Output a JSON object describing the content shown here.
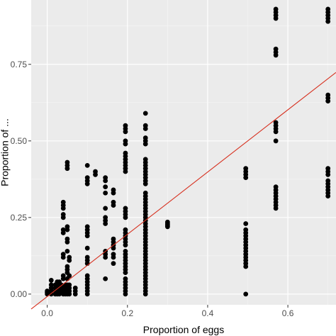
{
  "chart_data": {
    "type": "scatter",
    "title": "",
    "xlabel": "Proportion of eggs",
    "ylabel": "Proportion of ...",
    "xlim": [
      -0.04,
      0.72
    ],
    "ylim": [
      -0.035,
      0.96
    ],
    "x_ticks": [
      0.0,
      0.2,
      0.4,
      0.6
    ],
    "x_tick_labels": [
      "0.0",
      "0.2",
      "0.4",
      "0.6"
    ],
    "y_ticks": [
      0.0,
      0.25,
      0.5,
      0.75
    ],
    "y_tick_labels": [
      "0.00",
      "0.25",
      "0.50",
      "0.75"
    ],
    "grid": true,
    "background": "#ebebeb",
    "point_color": "#000000",
    "fit_line": {
      "intercept": -0.008,
      "slope": 1.016,
      "color": "#d7301f"
    },
    "points": [
      [
        0.0,
        0.005
      ],
      [
        0.0,
        0.01
      ],
      [
        0.0,
        0.0
      ],
      [
        0.01,
        0.0
      ],
      [
        0.01,
        0.01
      ],
      [
        0.01,
        0.02
      ],
      [
        0.01,
        0.03
      ],
      [
        0.01,
        0.045
      ],
      [
        0.02,
        0.0
      ],
      [
        0.02,
        0.01
      ],
      [
        0.02,
        0.02
      ],
      [
        0.02,
        0.03
      ],
      [
        0.025,
        0.0
      ],
      [
        0.025,
        0.02
      ],
      [
        0.025,
        0.04
      ],
      [
        0.03,
        0.0
      ],
      [
        0.03,
        0.01
      ],
      [
        0.03,
        0.02
      ],
      [
        0.03,
        0.03
      ],
      [
        0.03,
        0.04
      ],
      [
        0.035,
        0.01
      ],
      [
        0.035,
        0.03
      ],
      [
        0.04,
        0.0
      ],
      [
        0.04,
        0.01
      ],
      [
        0.04,
        0.02
      ],
      [
        0.04,
        0.05
      ],
      [
        0.04,
        0.06
      ],
      [
        0.04,
        0.12
      ],
      [
        0.04,
        0.13
      ],
      [
        0.04,
        0.2
      ],
      [
        0.04,
        0.21
      ],
      [
        0.04,
        0.25
      ],
      [
        0.04,
        0.26
      ],
      [
        0.04,
        0.28
      ],
      [
        0.04,
        0.29
      ],
      [
        0.04,
        0.3
      ],
      [
        0.045,
        0.0
      ],
      [
        0.045,
        0.01
      ],
      [
        0.045,
        0.02
      ],
      [
        0.045,
        0.03
      ],
      [
        0.05,
        0.0
      ],
      [
        0.05,
        0.01
      ],
      [
        0.05,
        0.02
      ],
      [
        0.05,
        0.03
      ],
      [
        0.05,
        0.05
      ],
      [
        0.05,
        0.07
      ],
      [
        0.05,
        0.08
      ],
      [
        0.05,
        0.09
      ],
      [
        0.05,
        0.14
      ],
      [
        0.05,
        0.17
      ],
      [
        0.05,
        0.18
      ],
      [
        0.05,
        0.21
      ],
      [
        0.05,
        0.22
      ],
      [
        0.05,
        0.41
      ],
      [
        0.05,
        0.42
      ],
      [
        0.05,
        0.43
      ],
      [
        0.055,
        0.0
      ],
      [
        0.055,
        0.01
      ],
      [
        0.055,
        0.02
      ],
      [
        0.055,
        0.03
      ],
      [
        0.055,
        0.06
      ],
      [
        0.055,
        0.11
      ],
      [
        0.055,
        0.12
      ],
      [
        0.07,
        0.0
      ],
      [
        0.07,
        0.01
      ],
      [
        0.07,
        0.02
      ],
      [
        0.1,
        0.0
      ],
      [
        0.1,
        0.01
      ],
      [
        0.1,
        0.02
      ],
      [
        0.1,
        0.03
      ],
      [
        0.1,
        0.04
      ],
      [
        0.1,
        0.05
      ],
      [
        0.1,
        0.06
      ],
      [
        0.1,
        0.1
      ],
      [
        0.1,
        0.11
      ],
      [
        0.1,
        0.12
      ],
      [
        0.1,
        0.15
      ],
      [
        0.1,
        0.19
      ],
      [
        0.1,
        0.2
      ],
      [
        0.1,
        0.21
      ],
      [
        0.1,
        0.22
      ],
      [
        0.1,
        0.36
      ],
      [
        0.1,
        0.37
      ],
      [
        0.1,
        0.38
      ],
      [
        0.1,
        0.42
      ],
      [
        0.12,
        0.39
      ],
      [
        0.12,
        0.4
      ],
      [
        0.145,
        0.05
      ],
      [
        0.145,
        0.12
      ],
      [
        0.145,
        0.13
      ],
      [
        0.145,
        0.14
      ],
      [
        0.145,
        0.23
      ],
      [
        0.145,
        0.24
      ],
      [
        0.145,
        0.25
      ],
      [
        0.145,
        0.28
      ],
      [
        0.145,
        0.33
      ],
      [
        0.145,
        0.35
      ],
      [
        0.145,
        0.37
      ],
      [
        0.145,
        0.38
      ],
      [
        0.165,
        0.1
      ],
      [
        0.165,
        0.12
      ],
      [
        0.165,
        0.13
      ],
      [
        0.165,
        0.15
      ],
      [
        0.165,
        0.16
      ],
      [
        0.165,
        0.17
      ],
      [
        0.165,
        0.18
      ],
      [
        0.165,
        0.29
      ],
      [
        0.165,
        0.3
      ],
      [
        0.165,
        0.33
      ],
      [
        0.165,
        0.34
      ],
      [
        0.195,
        0.0
      ],
      [
        0.195,
        0.01
      ],
      [
        0.195,
        0.02
      ],
      [
        0.195,
        0.03
      ],
      [
        0.195,
        0.04
      ],
      [
        0.195,
        0.05
      ],
      [
        0.195,
        0.07
      ],
      [
        0.195,
        0.08
      ],
      [
        0.195,
        0.09
      ],
      [
        0.195,
        0.1
      ],
      [
        0.195,
        0.11
      ],
      [
        0.195,
        0.12
      ],
      [
        0.195,
        0.13
      ],
      [
        0.195,
        0.14
      ],
      [
        0.195,
        0.16
      ],
      [
        0.195,
        0.17
      ],
      [
        0.195,
        0.18
      ],
      [
        0.195,
        0.19
      ],
      [
        0.195,
        0.2
      ],
      [
        0.195,
        0.21
      ],
      [
        0.195,
        0.25
      ],
      [
        0.195,
        0.26
      ],
      [
        0.195,
        0.27
      ],
      [
        0.195,
        0.28
      ],
      [
        0.195,
        0.4
      ],
      [
        0.195,
        0.41
      ],
      [
        0.195,
        0.42
      ],
      [
        0.195,
        0.43
      ],
      [
        0.195,
        0.44
      ],
      [
        0.195,
        0.45
      ],
      [
        0.195,
        0.46
      ],
      [
        0.195,
        0.49
      ],
      [
        0.195,
        0.5
      ],
      [
        0.195,
        0.53
      ],
      [
        0.195,
        0.54
      ],
      [
        0.195,
        0.55
      ],
      [
        0.245,
        0.0
      ],
      [
        0.245,
        0.01
      ],
      [
        0.245,
        0.02
      ],
      [
        0.245,
        0.03
      ],
      [
        0.245,
        0.04
      ],
      [
        0.245,
        0.05
      ],
      [
        0.245,
        0.06
      ],
      [
        0.245,
        0.07
      ],
      [
        0.245,
        0.08
      ],
      [
        0.245,
        0.09
      ],
      [
        0.245,
        0.1
      ],
      [
        0.245,
        0.11
      ],
      [
        0.245,
        0.12
      ],
      [
        0.245,
        0.13
      ],
      [
        0.245,
        0.14
      ],
      [
        0.245,
        0.15
      ],
      [
        0.245,
        0.16
      ],
      [
        0.245,
        0.17
      ],
      [
        0.245,
        0.18
      ],
      [
        0.245,
        0.19
      ],
      [
        0.245,
        0.2
      ],
      [
        0.245,
        0.21
      ],
      [
        0.245,
        0.22
      ],
      [
        0.245,
        0.23
      ],
      [
        0.245,
        0.24
      ],
      [
        0.245,
        0.25
      ],
      [
        0.245,
        0.26
      ],
      [
        0.245,
        0.27
      ],
      [
        0.245,
        0.28
      ],
      [
        0.245,
        0.29
      ],
      [
        0.245,
        0.3
      ],
      [
        0.245,
        0.31
      ],
      [
        0.245,
        0.32
      ],
      [
        0.245,
        0.33
      ],
      [
        0.245,
        0.36
      ],
      [
        0.245,
        0.37
      ],
      [
        0.245,
        0.38
      ],
      [
        0.245,
        0.39
      ],
      [
        0.245,
        0.4
      ],
      [
        0.245,
        0.41
      ],
      [
        0.245,
        0.42
      ],
      [
        0.245,
        0.43
      ],
      [
        0.245,
        0.44
      ],
      [
        0.245,
        0.49
      ],
      [
        0.245,
        0.5
      ],
      [
        0.245,
        0.51
      ],
      [
        0.245,
        0.54
      ],
      [
        0.245,
        0.55
      ],
      [
        0.245,
        0.59
      ],
      [
        0.3,
        0.22
      ],
      [
        0.3,
        0.225
      ],
      [
        0.3,
        0.23
      ],
      [
        0.3,
        0.235
      ],
      [
        0.495,
        0.0
      ],
      [
        0.495,
        0.09
      ],
      [
        0.495,
        0.1
      ],
      [
        0.495,
        0.11
      ],
      [
        0.495,
        0.12
      ],
      [
        0.495,
        0.13
      ],
      [
        0.495,
        0.14
      ],
      [
        0.495,
        0.15
      ],
      [
        0.495,
        0.16
      ],
      [
        0.495,
        0.17
      ],
      [
        0.495,
        0.18
      ],
      [
        0.495,
        0.19
      ],
      [
        0.495,
        0.2
      ],
      [
        0.495,
        0.21
      ],
      [
        0.495,
        0.23
      ],
      [
        0.495,
        0.38
      ],
      [
        0.495,
        0.39
      ],
      [
        0.495,
        0.4
      ],
      [
        0.495,
        0.41
      ],
      [
        0.57,
        0.28
      ],
      [
        0.57,
        0.29
      ],
      [
        0.57,
        0.3
      ],
      [
        0.57,
        0.31
      ],
      [
        0.57,
        0.32
      ],
      [
        0.57,
        0.33
      ],
      [
        0.57,
        0.34
      ],
      [
        0.57,
        0.35
      ],
      [
        0.57,
        0.5
      ],
      [
        0.57,
        0.53
      ],
      [
        0.57,
        0.54
      ],
      [
        0.57,
        0.55
      ],
      [
        0.57,
        0.56
      ],
      [
        0.57,
        0.78
      ],
      [
        0.57,
        0.79
      ],
      [
        0.57,
        0.8
      ],
      [
        0.57,
        0.9
      ],
      [
        0.57,
        0.91
      ],
      [
        0.57,
        0.92
      ],
      [
        0.57,
        0.93
      ],
      [
        0.7,
        0.32
      ],
      [
        0.7,
        0.33
      ],
      [
        0.7,
        0.34
      ],
      [
        0.7,
        0.35
      ],
      [
        0.7,
        0.36
      ],
      [
        0.7,
        0.37
      ],
      [
        0.7,
        0.39
      ],
      [
        0.7,
        0.4
      ],
      [
        0.7,
        0.41
      ],
      [
        0.7,
        0.63
      ],
      [
        0.7,
        0.64
      ],
      [
        0.7,
        0.65
      ],
      [
        0.7,
        0.89
      ],
      [
        0.7,
        0.9
      ],
      [
        0.7,
        0.91
      ],
      [
        0.7,
        0.92
      ],
      [
        0.7,
        0.93
      ]
    ]
  }
}
